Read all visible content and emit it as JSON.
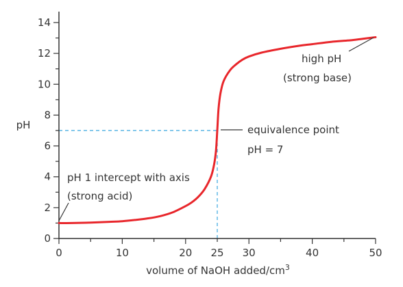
{
  "chart_data": {
    "type": "line",
    "title": "",
    "xlabel": "volume of NaOH added/cm",
    "xlabel_superscript": "3",
    "ylabel": "pH",
    "xlim": [
      0,
      50
    ],
    "ylim": [
      0,
      14
    ],
    "x_ticks": [
      "0",
      "10",
      "20",
      "25",
      "30",
      "40",
      "50"
    ],
    "x_tick_values": [
      0,
      10,
      20,
      25,
      30,
      40,
      50
    ],
    "y_ticks": [
      "0",
      "2",
      "4",
      "6",
      "8",
      "10",
      "12",
      "14"
    ],
    "y_tick_values": [
      0,
      2,
      4,
      6,
      8,
      10,
      12,
      14
    ],
    "grid": false,
    "series": [
      {
        "color": "#e8262b",
        "x": [
          0,
          2,
          5,
          8,
          10,
          12,
          14,
          16,
          18,
          20,
          21,
          22,
          23,
          24,
          24.5,
          24.8,
          25,
          25.2,
          25.5,
          26,
          27,
          28,
          29,
          30,
          32,
          35,
          38,
          40,
          43,
          46,
          48,
          50
        ],
        "y": [
          1.0,
          1.0,
          1.03,
          1.08,
          1.12,
          1.2,
          1.3,
          1.45,
          1.7,
          2.1,
          2.35,
          2.7,
          3.2,
          4.0,
          4.8,
          5.7,
          7.0,
          8.4,
          9.4,
          10.2,
          10.9,
          11.3,
          11.6,
          11.8,
          12.05,
          12.3,
          12.5,
          12.6,
          12.75,
          12.85,
          12.95,
          13.05
        ]
      }
    ],
    "reference_lines": {
      "color": "#3aa6df",
      "x": 25,
      "y": 7
    },
    "annotations": [
      {
        "lines": [
          "high pH",
          "(strong base)"
        ]
      },
      {
        "lines": [
          "equivalence point",
          "pH = 7"
        ]
      },
      {
        "lines": [
          "pH 1 intercept with axis",
          "(strong acid)"
        ]
      }
    ]
  }
}
